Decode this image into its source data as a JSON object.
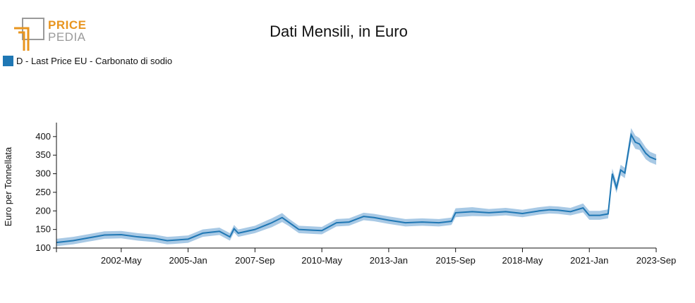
{
  "brand": {
    "word1": "PRICE",
    "word2": "PEDIA",
    "accent": "#e8951f",
    "gray": "#9a9a9a"
  },
  "chart_data": {
    "type": "area",
    "title": "Dati Mensili, in Euro",
    "xlabel": "",
    "ylabel": "Euro per Tonnellata",
    "ylim": [
      100,
      430
    ],
    "yticks": [
      100,
      150,
      200,
      250,
      300,
      350,
      400
    ],
    "x_tick_labels": [
      "2002-May",
      "2005-Jan",
      "2007-Sep",
      "2010-May",
      "2013-Jan",
      "2015-Sep",
      "2018-May",
      "2021-Jan",
      "2023-Sep"
    ],
    "x_range": [
      "1999-Oct",
      "2023-Sep"
    ],
    "grid": false,
    "legend_position": "top-left",
    "series": [
      {
        "name": "D - Last Price EU - Carbonato di sodio",
        "color": "#1f77b4",
        "band_color": "#9ec3e2",
        "x": [
          "1999-Oct",
          "2000-Jun",
          "2001-Jan",
          "2001-Sep",
          "2002-May",
          "2003-Jan",
          "2003-Sep",
          "2004-Mar",
          "2004-Jun",
          "2005-Jan",
          "2005-Aug",
          "2006-Apr",
          "2006-Sep",
          "2006-Nov",
          "2007-Jan",
          "2007-Sep",
          "2008-May",
          "2008-Oct",
          "2009-Jan",
          "2009-Jun",
          "2010-Jan",
          "2010-May",
          "2010-Dec",
          "2011-Jun",
          "2012-Jan",
          "2012-Jun",
          "2013-Jan",
          "2013-Sep",
          "2014-May",
          "2015-Jan",
          "2015-Jul",
          "2015-Sep",
          "2016-May",
          "2017-Jan",
          "2017-Sep",
          "2018-May",
          "2019-Jan",
          "2019-Jun",
          "2019-Oct",
          "2020-Apr",
          "2020-Oct",
          "2021-Jan",
          "2021-Jun",
          "2021-Oct",
          "2021-Dec",
          "2022-Feb",
          "2022-Apr",
          "2022-Jun",
          "2022-Sep",
          "2022-Nov",
          "2023-Jan",
          "2023-Apr",
          "2023-Jun",
          "2023-Sep"
        ],
        "values": [
          115,
          120,
          127,
          135,
          136,
          130,
          126,
          120,
          121,
          124,
          140,
          145,
          130,
          152,
          140,
          150,
          168,
          182,
          170,
          150,
          148,
          147,
          168,
          170,
          185,
          182,
          175,
          168,
          170,
          168,
          172,
          195,
          198,
          195,
          198,
          193,
          200,
          203,
          202,
          198,
          208,
          188,
          188,
          192,
          300,
          262,
          310,
          302,
          405,
          385,
          380,
          355,
          345,
          338
        ],
        "band_halfwidth": [
          10,
          10,
          10,
          10,
          10,
          10,
          10,
          10,
          10,
          10,
          10,
          10,
          10,
          10,
          10,
          10,
          12,
          12,
          10,
          10,
          10,
          10,
          10,
          10,
          10,
          10,
          10,
          10,
          10,
          10,
          10,
          12,
          12,
          10,
          10,
          10,
          10,
          10,
          10,
          10,
          12,
          12,
          12,
          12,
          14,
          14,
          14,
          14,
          18,
          18,
          16,
          16,
          14,
          14
        ]
      }
    ]
  }
}
